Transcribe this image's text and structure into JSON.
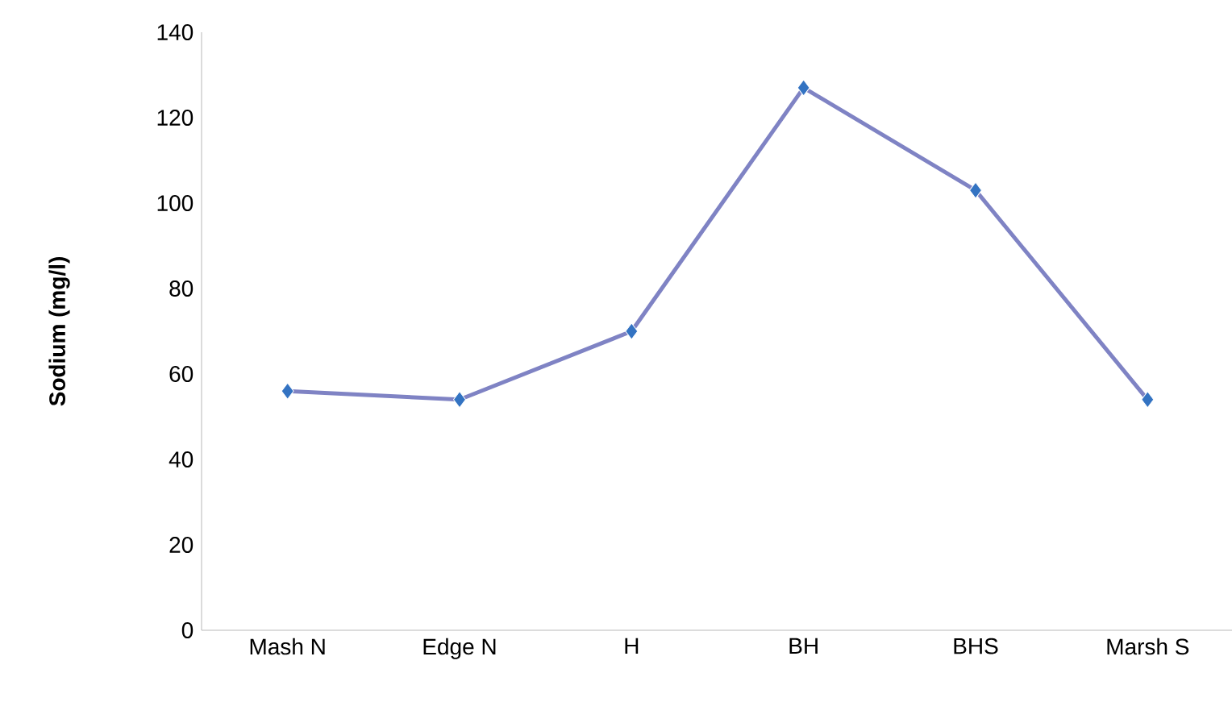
{
  "chart_data": {
    "type": "line",
    "ylabel": "Sodium (mg/l)",
    "categories": [
      "Mash N",
      "Edge N",
      "H",
      "BH",
      "BHS",
      "Marsh S"
    ],
    "series": [
      {
        "color": "#7f83c4",
        "values": [
          56,
          54,
          70,
          127,
          103,
          54
        ]
      }
    ],
    "ylim": [
      0,
      140
    ],
    "yticks": [
      0,
      20,
      40,
      60,
      80,
      100,
      120,
      140
    ],
    "marker": "diamond",
    "grid": false
  }
}
